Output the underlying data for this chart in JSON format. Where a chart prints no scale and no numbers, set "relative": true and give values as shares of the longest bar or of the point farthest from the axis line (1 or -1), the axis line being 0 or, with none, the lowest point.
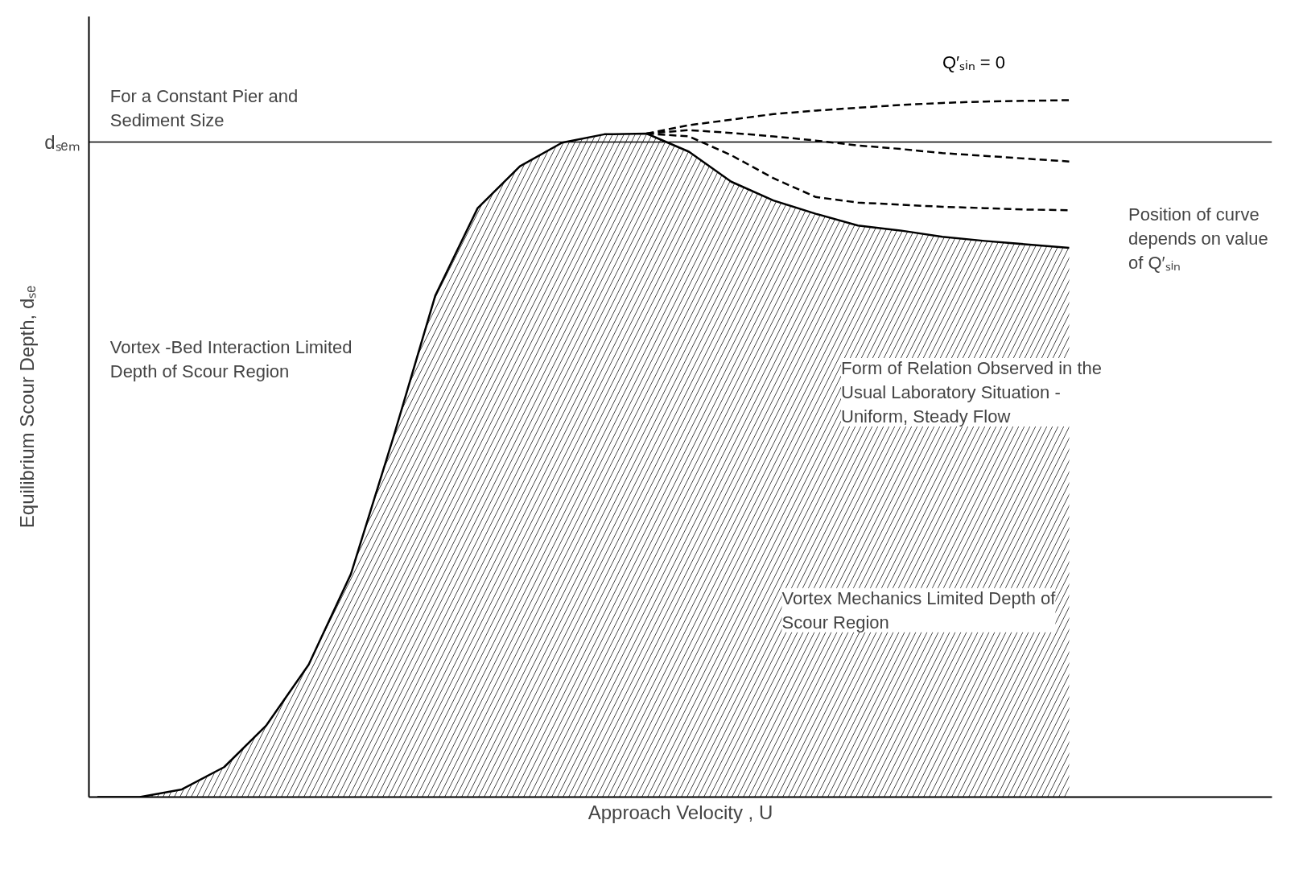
{
  "chart_data": {
    "type": "line",
    "relative": true,
    "xlabel": "Approach Velocity , U",
    "ylabel": "Equilibrium Scour Depth, dₛₑ",
    "categories": [
      null,
      null,
      null,
      null,
      null,
      null,
      null,
      null,
      null,
      null,
      null,
      null,
      null,
      null,
      null,
      null,
      null,
      null,
      null,
      null,
      null,
      null,
      null,
      null,
      null,
      null,
      null,
      null,
      null
    ],
    "series": [
      {
        "type": "area",
        "color": "#000000",
        "line_style": "solid",
        "values": [
          0,
          0,
          0.011,
          0.043,
          0.103,
          0.19,
          0.32,
          0.515,
          0.72,
          0.845,
          0.905,
          0.939,
          0.951,
          0.952,
          0.926,
          0.883,
          0.856,
          0.837,
          0.82,
          0.813,
          0.804,
          0.798,
          0.793,
          0.788,
          null,
          null,
          null,
          null,
          null
        ]
      },
      {
        "name": "Q′ₛᵢₙ = 0",
        "color": "#000000",
        "line_style": "dashed",
        "values": [
          null,
          null,
          null,
          null,
          null,
          null,
          null,
          null,
          null,
          null,
          null,
          null,
          null,
          0.952,
          0.964,
          0.972,
          0.98,
          0.985,
          0.989,
          0.993,
          0.996,
          0.998,
          0.999,
          1,
          null,
          null,
          null,
          null,
          null
        ]
      },
      {
        "color": "#000000",
        "line_style": "dashed",
        "values": [
          null,
          null,
          null,
          null,
          null,
          null,
          null,
          null,
          null,
          null,
          null,
          null,
          null,
          0.952,
          0.957,
          0.953,
          0.948,
          0.942,
          0.935,
          0.93,
          0.924,
          0.92,
          0.916,
          0.912,
          null,
          null,
          null,
          null,
          null
        ]
      },
      {
        "color": "#000000",
        "line_style": "dashed",
        "values": [
          null,
          null,
          null,
          null,
          null,
          null,
          null,
          null,
          null,
          null,
          null,
          null,
          null,
          0.952,
          0.948,
          0.921,
          0.888,
          0.861,
          0.853,
          0.85,
          0.847,
          0.845,
          0.843,
          0.842,
          null,
          null,
          null,
          null,
          null
        ]
      }
    ],
    "ref_lines": [
      {
        "axis": "y",
        "value": 0.94,
        "label": "dₛₑₘ"
      }
    ],
    "annotations": [
      "For a Constant Pier and Sediment Size",
      "Vortex -Bed Interaction Limited Depth of Scour Region",
      "Form of Relation Observed in the Usual Laboratory Situation - Uniform, Steady Flow",
      "Vortex Mechanics Limited Depth of Scour Region",
      "Position of curve depends on value of Q′ₛᵢₙ"
    ]
  }
}
